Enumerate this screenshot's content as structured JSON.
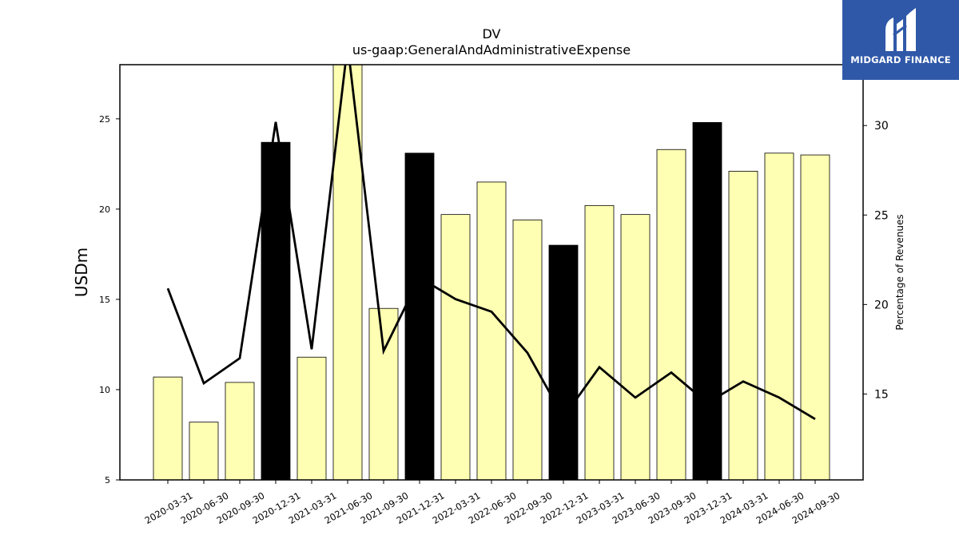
{
  "chart_data": {
    "type": "bar",
    "title": "DV",
    "subtitle": "us-gaap:GeneralAndAdministrativeExpense",
    "ylabel": "USDm",
    "y2label": "Percentage of Revenues",
    "ylim": [
      5,
      28
    ],
    "y2lim": [
      10.2,
      33.4
    ],
    "yticks": [
      5,
      10,
      15,
      20,
      25
    ],
    "y2ticks": [
      15,
      20,
      25,
      30
    ],
    "categories": [
      "2020-03-31",
      "2020-06-30",
      "2020-09-30",
      "2020-12-31",
      "2021-03-31",
      "2021-06-30",
      "2021-09-30",
      "2021-12-31",
      "2022-03-31",
      "2022-06-30",
      "2022-09-30",
      "2022-12-31",
      "2023-03-31",
      "2023-06-30",
      "2023-09-30",
      "2023-12-31",
      "2024-03-31",
      "2024-06-30",
      "2024-09-30"
    ],
    "series": [
      {
        "kind": "bar",
        "values": [
          10.7,
          8.2,
          10.4,
          23.7,
          11.8,
          28.0,
          14.5,
          23.1,
          19.7,
          21.5,
          19.4,
          18.0,
          20.2,
          19.7,
          23.3,
          24.8,
          22.1,
          23.1,
          23.0
        ],
        "highlight": [
          false,
          false,
          false,
          true,
          false,
          false,
          false,
          true,
          false,
          false,
          false,
          true,
          false,
          false,
          false,
          true,
          false,
          false,
          false
        ]
      },
      {
        "kind": "line",
        "axis": "right",
        "values": [
          20.9,
          15.6,
          17.0,
          30.2,
          17.5,
          34.5,
          17.4,
          21.5,
          20.3,
          19.6,
          17.3,
          13.7,
          16.5,
          14.8,
          16.2,
          14.5,
          15.7,
          14.8,
          13.6
        ]
      }
    ],
    "colors": {
      "bar": "#ffffb3",
      "highlight_bar": "#000000",
      "line": "#000000"
    }
  },
  "logo": {
    "text": "MIDGARD FINANCE",
    "background": "#2f58a8"
  }
}
